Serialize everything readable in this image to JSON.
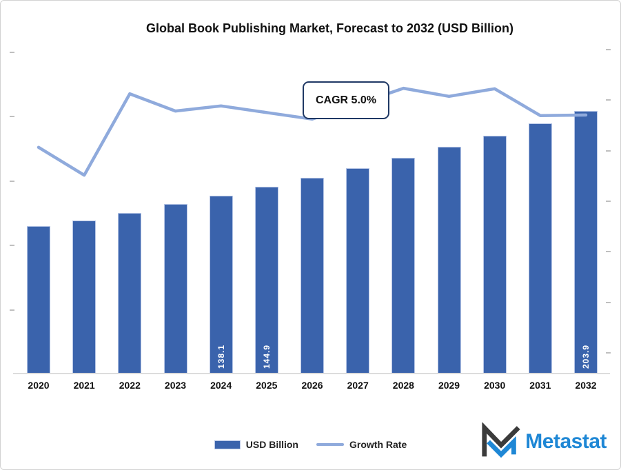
{
  "chart": {
    "title": "Global Book Publishing Market, Forecast to 2032 (USD Billion)",
    "annotation_label": "CAGR 5.0%",
    "legend": {
      "bar_label": "USD Billion",
      "line_label": "Growth Rate"
    }
  },
  "chart_data": {
    "type": "bar+line",
    "title": "Global Book Publishing Market, Forecast to 2032 (USD Billion)",
    "categories": [
      "2020",
      "2021",
      "2022",
      "2023",
      "2024",
      "2025",
      "2026",
      "2027",
      "2028",
      "2029",
      "2030",
      "2031",
      "2032"
    ],
    "series": [
      {
        "name": "USD Billion",
        "type": "bar",
        "values": [
          114.6,
          118.9,
          124.8,
          131.6,
          138.1,
          144.9,
          152.1,
          159.8,
          167.7,
          176.1,
          184.9,
          194.2,
          203.9
        ],
        "data_labels": [
          null,
          null,
          null,
          null,
          "138.1",
          "144.9",
          null,
          null,
          null,
          null,
          null,
          null,
          "203.9"
        ]
      },
      {
        "name": "Growth Rate",
        "type": "line",
        "unit": "%",
        "values": [
          5.05,
          4.5,
          6.11,
          5.77,
          5.87,
          5.74,
          5.61,
          5.91,
          6.22,
          6.06,
          6.21,
          5.68,
          5.69
        ]
      }
    ],
    "annotation": "CAGR 5.0%",
    "axes": {
      "x_tick_labels": [
        "2020",
        "2021",
        "2022",
        "2023",
        "2024",
        "2025",
        "2026",
        "2027",
        "2028",
        "2029",
        "2030",
        "2031",
        "2032"
      ],
      "y_left": {
        "min": 0,
        "max": 250,
        "step": 50,
        "tick_labels_visible": false
      },
      "y_right": {
        "tick_count": 7,
        "tick_labels_visible": false
      }
    },
    "grid": false,
    "legend_position": "bottom-center"
  },
  "branding": {
    "logo_text": "Metastat"
  },
  "colors": {
    "bar": "#3a63ac",
    "bar_border": "#b7c6e6",
    "line": "#8faadc",
    "annotation_border": "#1f3864",
    "tick": "#bfbfbf",
    "baseline": "#dcdcdc",
    "logo_blue": "#1e87d5",
    "logo_dark": "#3b3b3b",
    "text": "#111111"
  }
}
